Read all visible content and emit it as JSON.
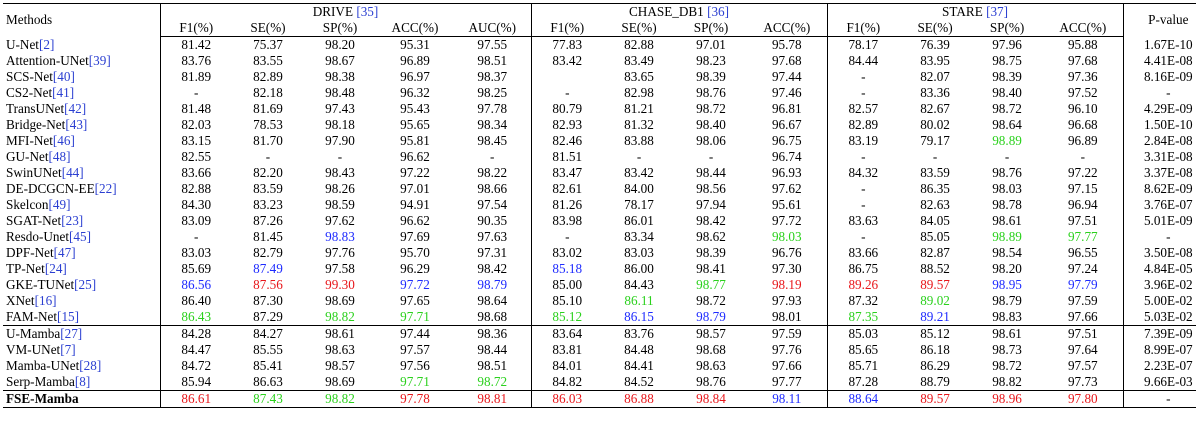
{
  "header": {
    "methods": "Methods",
    "pvalue": "P-value",
    "groups": [
      {
        "name": "DRIVE",
        "ref": "[35]"
      },
      {
        "name": "CHASE_DB1",
        "ref": "[36]"
      },
      {
        "name": "STARE",
        "ref": "[37]"
      }
    ],
    "columns": [
      "F1(%)",
      "SE(%)",
      "SP(%)",
      "ACC(%)",
      "AUC(%)",
      "F1(%)",
      "SE(%)",
      "SP(%)",
      "ACC(%)",
      "F1(%)",
      "SE(%)",
      "SP(%)",
      "ACC(%)"
    ]
  },
  "colors": {
    "red": "#e8161a",
    "green": "#2bd11d",
    "blue": "#1e2bff",
    "ref": "#2b3fd1"
  },
  "rows": [
    {
      "name": "U-Net",
      "ref": "[2]",
      "values": [
        "81.42",
        "75.37",
        "98.20",
        "95.31",
        "97.55",
        "77.83",
        "82.88",
        "97.01",
        "95.78",
        "78.17",
        "76.39",
        "97.96",
        "95.88"
      ],
      "pvalue": "1.67E-10"
    },
    {
      "name": "Attention-UNet",
      "ref": "[39]",
      "values": [
        "83.76",
        "83.55",
        "98.67",
        "96.89",
        "98.51",
        "83.42",
        "83.49",
        "98.23",
        "97.68",
        "84.44",
        "83.95",
        "98.75",
        "97.68"
      ],
      "pvalue": "4.41E-08"
    },
    {
      "name": "SCS-Net",
      "ref": "[40]",
      "values": [
        "81.89",
        "82.89",
        "98.38",
        "96.97",
        "98.37",
        "",
        "83.65",
        "98.39",
        "97.44",
        "-",
        "82.07",
        "98.39",
        "97.36"
      ],
      "pvalue": "8.16E-09"
    },
    {
      "name": "CS2-Net",
      "ref": "[41]",
      "values": [
        "-",
        "82.18",
        "98.48",
        "96.32",
        "98.25",
        "-",
        "82.98",
        "98.76",
        "97.46",
        "-",
        "83.36",
        "98.40",
        "97.52"
      ],
      "pvalue": "-"
    },
    {
      "name": "TransUNet",
      "ref": "[42]",
      "values": [
        "81.48",
        "81.69",
        "97.43",
        "95.43",
        "97.78",
        "80.79",
        "81.21",
        "98.72",
        "96.81",
        "82.57",
        "82.67",
        "98.72",
        "96.10"
      ],
      "pvalue": "4.29E-09"
    },
    {
      "name": "Bridge-Net",
      "ref": "[43]",
      "values": [
        "82.03",
        "78.53",
        "98.18",
        "95.65",
        "98.34",
        "82.93",
        "81.32",
        "98.40",
        "96.67",
        "82.89",
        "80.02",
        "98.64",
        "96.68"
      ],
      "pvalue": "1.50E-10"
    },
    {
      "name": "MFI-Net",
      "ref": "[46]",
      "values": [
        "83.15",
        "81.70",
        "97.90",
        "95.81",
        "98.45",
        "82.46",
        "83.88",
        "98.06",
        "96.75",
        "83.19",
        "79.17",
        "98.89",
        "96.89"
      ],
      "pvalue": "2.84E-08",
      "colors": {
        "11": "green"
      }
    },
    {
      "name": "GU-Net",
      "ref": "[48]",
      "values": [
        "82.55",
        "-",
        "-",
        "96.62",
        "-",
        "81.51",
        "-",
        "-",
        "96.74",
        "-",
        "-",
        "-",
        "-"
      ],
      "pvalue": "3.31E-08"
    },
    {
      "name": "SwinUNet",
      "ref": "[44]",
      "values": [
        "83.66",
        "82.20",
        "98.43",
        "97.22",
        "98.22",
        "83.47",
        "83.42",
        "98.44",
        "96.93",
        "84.32",
        "83.59",
        "98.76",
        "97.22"
      ],
      "pvalue": "3.37E-08"
    },
    {
      "name": "DE-DCGCN-EE",
      "ref": "[22]",
      "values": [
        "82.88",
        "83.59",
        "98.26",
        "97.01",
        "98.66",
        "82.61",
        "84.00",
        "98.56",
        "97.62",
        "-",
        "86.35",
        "98.03",
        "97.15"
      ],
      "pvalue": "8.62E-09"
    },
    {
      "name": "Skelcon",
      "ref": "[49]",
      "values": [
        "84.30",
        "83.23",
        "98.59",
        "94.91",
        "97.54",
        "81.26",
        "78.17",
        "97.94",
        "95.61",
        "-",
        "82.63",
        "98.78",
        "96.94"
      ],
      "pvalue": "3.76E-07"
    },
    {
      "name": "SGAT-Net",
      "ref": "[23]",
      "values": [
        "83.09",
        "87.26",
        "97.62",
        "96.62",
        "90.35",
        "83.98",
        "86.01",
        "98.42",
        "97.72",
        "83.63",
        "84.05",
        "98.61",
        "97.51"
      ],
      "pvalue": "5.01E-09"
    },
    {
      "name": "Resdo-Unet",
      "ref": "[45]",
      "values": [
        "-",
        "81.45",
        "98.83",
        "97.69",
        "97.63",
        "-",
        "83.34",
        "98.62",
        "98.03",
        "-",
        "85.05",
        "98.89",
        "97.77"
      ],
      "pvalue": "-",
      "colors": {
        "2": "blue",
        "8": "green",
        "11": "green",
        "12": "green"
      }
    },
    {
      "name": "DPF-Net",
      "ref": "[47]",
      "values": [
        "83.03",
        "82.79",
        "97.76",
        "95.70",
        "97.31",
        "83.02",
        "83.03",
        "98.39",
        "96.76",
        "83.66",
        "82.87",
        "98.54",
        "96.55"
      ],
      "pvalue": "3.50E-08"
    },
    {
      "name": "TP-Net",
      "ref": "[24]",
      "values": [
        "85.69",
        "87.49",
        "97.58",
        "96.29",
        "98.42",
        "85.18",
        "86.00",
        "98.41",
        "97.30",
        "86.75",
        "88.52",
        "98.20",
        "97.24"
      ],
      "pvalue": "4.84E-05",
      "colors": {
        "1": "blue",
        "5": "blue"
      }
    },
    {
      "name": "GKE-TUNet",
      "ref": "[25]",
      "values": [
        "86.56",
        "87.56",
        "99.30",
        "97.72",
        "98.79",
        "85.00",
        "84.43",
        "98.77",
        "98.19",
        "89.26",
        "89.57",
        "98.95",
        "97.79"
      ],
      "pvalue": "3.96E-02",
      "colors": {
        "0": "blue",
        "1": "red",
        "2": "red",
        "3": "blue",
        "4": "blue",
        "7": "green",
        "8": "red",
        "9": "red",
        "10": "red",
        "11": "blue",
        "12": "blue"
      }
    },
    {
      "name": "XNet",
      "ref": "[16]",
      "values": [
        "86.40",
        "87.30",
        "98.69",
        "97.65",
        "98.64",
        "85.10",
        "86.11",
        "98.72",
        "97.93",
        "87.32",
        "89.02",
        "98.79",
        "97.59"
      ],
      "pvalue": "5.00E-02",
      "colors": {
        "6": "green",
        "10": "green"
      }
    },
    {
      "name": "FAM-Net",
      "ref": "[15]",
      "values": [
        "86.43",
        "87.29",
        "98.82",
        "97.71",
        "98.68",
        "85.12",
        "86.15",
        "98.79",
        "98.01",
        "87.35",
        "89.21",
        "98.83",
        "97.66"
      ],
      "pvalue": "5.03E-02",
      "colors": {
        "0": "green",
        "2": "green",
        "3": "green",
        "5": "green",
        "6": "blue",
        "7": "blue",
        "9": "green",
        "10": "blue"
      }
    },
    {
      "name": "U-Mamba",
      "ref": "[27]",
      "values": [
        "84.28",
        "84.27",
        "98.61",
        "97.44",
        "98.36",
        "83.64",
        "83.76",
        "98.57",
        "97.59",
        "85.03",
        "85.12",
        "98.61",
        "97.51"
      ],
      "pvalue": "7.39E-09"
    },
    {
      "name": "VM-UNet",
      "ref": "[7]",
      "values": [
        "84.47",
        "85.55",
        "98.63",
        "97.57",
        "98.44",
        "83.81",
        "84.48",
        "98.68",
        "97.76",
        "85.65",
        "86.18",
        "98.73",
        "97.64"
      ],
      "pvalue": "8.99E-07"
    },
    {
      "name": "Mamba-UNet",
      "ref": "[28]",
      "values": [
        "84.72",
        "85.41",
        "98.57",
        "97.56",
        "98.51",
        "84.01",
        "84.41",
        "98.63",
        "97.66",
        "85.71",
        "86.29",
        "98.72",
        "97.57"
      ],
      "pvalue": "2.23E-07"
    },
    {
      "name": "Serp-Mamba",
      "ref": "[8]",
      "values": [
        "85.94",
        "86.63",
        "98.69",
        "97.71",
        "98.72",
        "84.82",
        "84.52",
        "98.76",
        "97.77",
        "87.28",
        "88.79",
        "98.82",
        "97.73"
      ],
      "pvalue": "9.66E-03",
      "colors": {
        "3": "green",
        "4": "green"
      }
    },
    {
      "name": "FSE-Mamba",
      "ref": "",
      "values": [
        "86.61",
        "87.43",
        "98.82",
        "97.78",
        "98.81",
        "86.03",
        "86.88",
        "98.84",
        "98.11",
        "88.64",
        "89.57",
        "98.96",
        "97.80"
      ],
      "pvalue": "-",
      "colors": {
        "0": "red",
        "1": "green",
        "2": "green",
        "3": "red",
        "4": "red",
        "5": "red",
        "6": "red",
        "7": "red",
        "8": "blue",
        "9": "blue",
        "10": "red",
        "11": "red",
        "12": "red"
      }
    }
  ]
}
